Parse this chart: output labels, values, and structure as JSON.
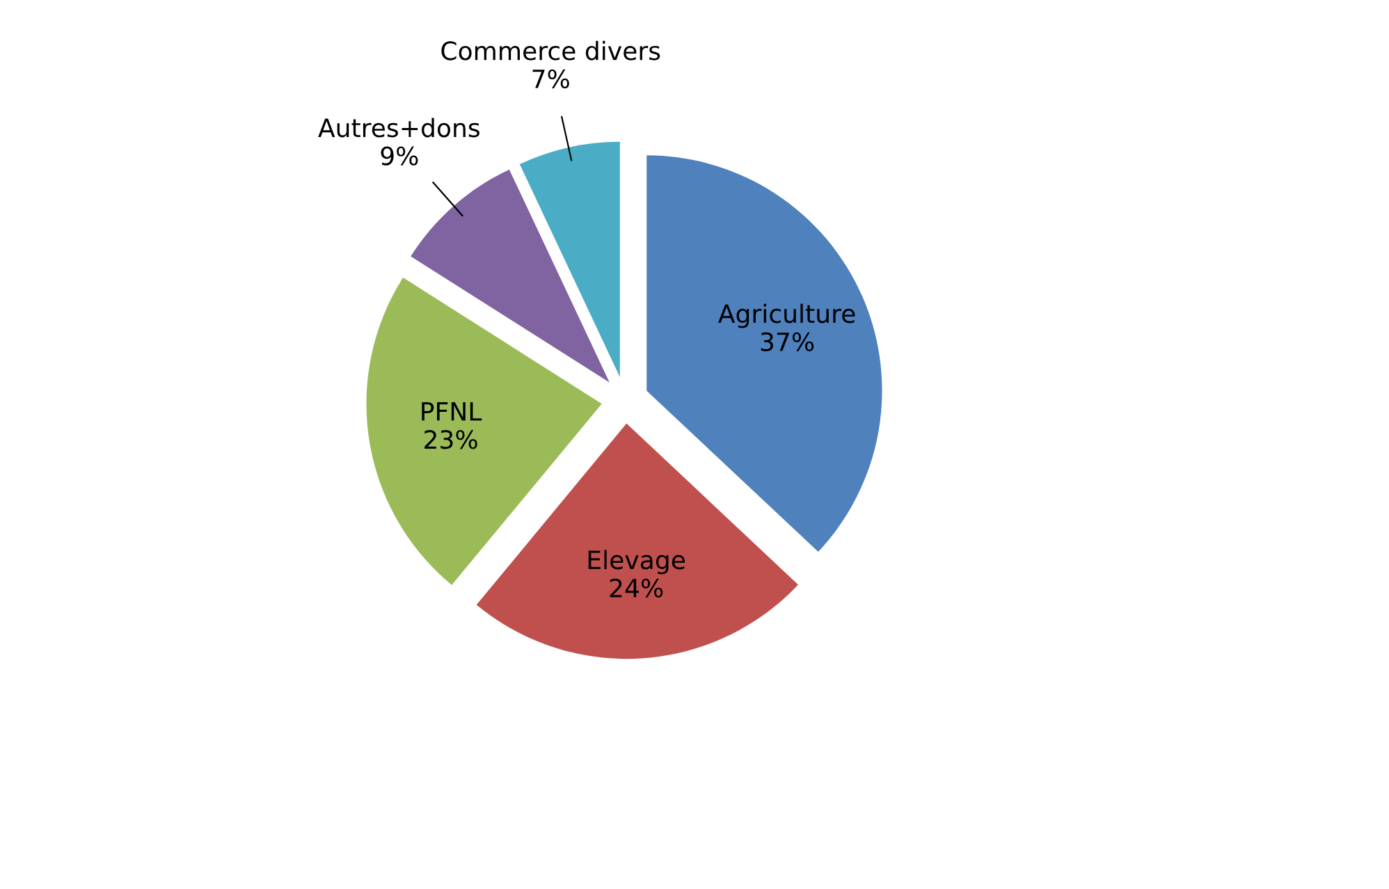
{
  "chart_data": {
    "type": "pie",
    "categories": [
      "Agriculture",
      "Elevage",
      "PFNL",
      "Autres+dons",
      "Commerce divers"
    ],
    "values": [
      37,
      24,
      23,
      9,
      7
    ],
    "colors": [
      "#4f81bd",
      "#c0504d",
      "#9bbb59",
      "#8064a2",
      "#4bacc6"
    ],
    "value_labels": [
      "37%",
      "24%",
      "23%",
      "9%",
      "7%"
    ],
    "legend": false
  }
}
